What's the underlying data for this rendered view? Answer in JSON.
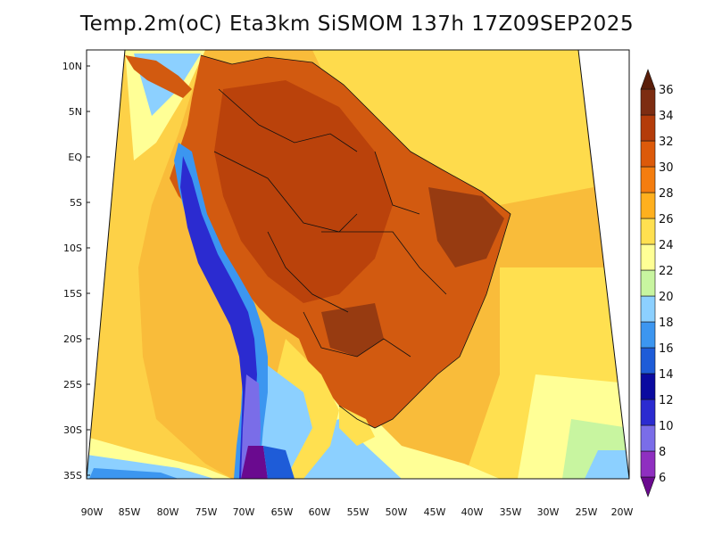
{
  "title": "Temp.2m(oC) Eta3km SiSMOM 137h 17Z09SEP2025",
  "lat_labels": [
    "10N",
    "5N",
    "EQ",
    "5S",
    "10S",
    "15S",
    "20S",
    "25S",
    "30S",
    "35S"
  ],
  "lon_labels": [
    "90W",
    "85W",
    "80W",
    "75W",
    "70W",
    "65W",
    "60W",
    "55W",
    "50W",
    "45W",
    "40W",
    "35W",
    "30W",
    "25W",
    "20W"
  ],
  "colorbar": {
    "labels": [
      "6",
      "8",
      "10",
      "12",
      "14",
      "16",
      "18",
      "20",
      "22",
      "24",
      "26",
      "28",
      "30",
      "32",
      "34",
      "36"
    ],
    "colors": [
      "#6a0a8f",
      "#8f2fc0",
      "#7a6de8",
      "#2b2bd0",
      "#0a0aa0",
      "#1e5cd8",
      "#3c96f0",
      "#8cd0ff",
      "#c8f5a0",
      "#ffff96",
      "#ffe050",
      "#ffb01e",
      "#f47d0f",
      "#dc5a0a",
      "#b43c0a",
      "#7d2d12",
      "#5a1e0a"
    ]
  },
  "colors": {
    "ocean": "#f9bc3a",
    "land": "#d25a10"
  }
}
